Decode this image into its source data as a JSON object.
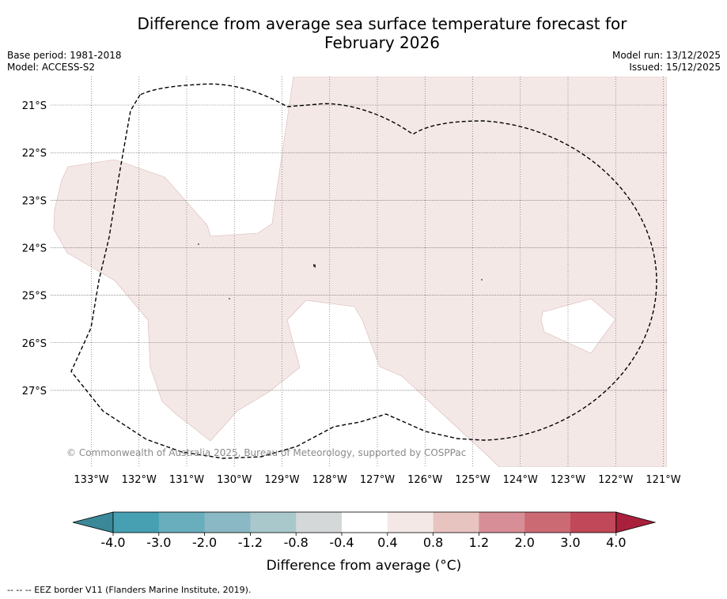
{
  "title": {
    "line1": "Difference from average sea surface temperature forecast for",
    "line2": "February 2026"
  },
  "meta": {
    "base_period": "Base period: 1981-2018",
    "model": "Model: ACCESS-S2",
    "model_run": "Model run: 13/12/2025",
    "issued": "Issued: 15/12/2025"
  },
  "map": {
    "lat_labels": [
      "21°S",
      "22°S",
      "23°S",
      "24°S",
      "25°S",
      "26°S",
      "27°S"
    ],
    "lon_labels": [
      "133°W",
      "132°W",
      "131°W",
      "130°W",
      "129°W",
      "128°W",
      "127°W",
      "126°W",
      "125°W",
      "124°W",
      "123°W",
      "122°W",
      "121°W"
    ],
    "copyright": "© Commonwealth of Australia 2025, Bureau of Meteorology, supported by COSPPac",
    "fill_color": "#f4e8e6",
    "background_color": "#ffffff"
  },
  "colorbar": {
    "ticks": [
      "-4.0",
      "-3.0",
      "-2.0",
      "-1.2",
      "-0.8",
      "-0.4",
      "0.4",
      "0.8",
      "1.2",
      "2.0",
      "3.0",
      "4.0"
    ],
    "colors": [
      "#46a0b2",
      "#68aebc",
      "#8ab8c4",
      "#a8c8cc",
      "#d4d8d8",
      "#ffffff",
      "#f4e8e6",
      "#e8c4c0",
      "#d88e96",
      "#cc6a74",
      "#c04858"
    ],
    "under_color": "#3a8898",
    "over_color": "#a8203c",
    "label": "Difference from average (°C)"
  },
  "footnote": "--  --  -- EEZ border V11 (Flanders Marine Institute, 2019)."
}
